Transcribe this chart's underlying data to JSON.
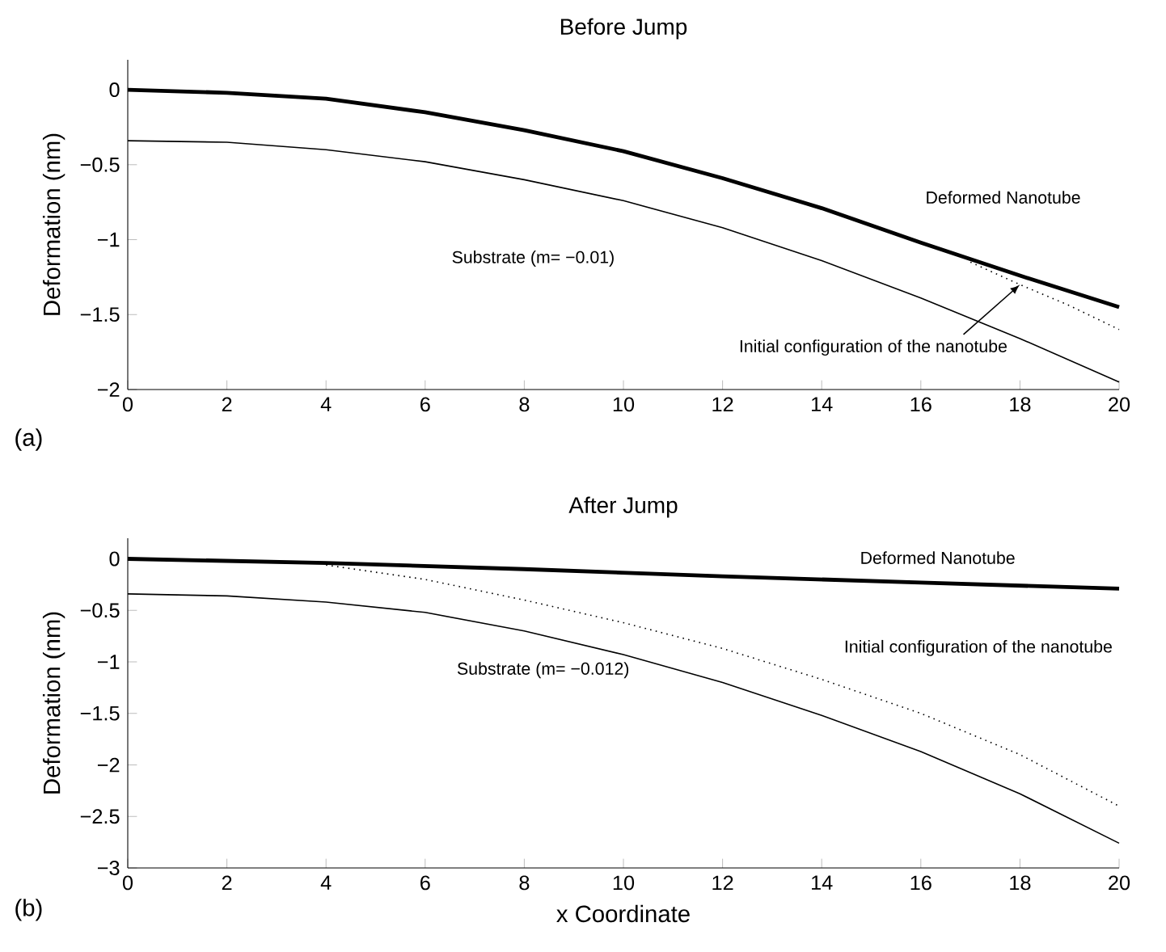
{
  "chart_data": [
    {
      "type": "line",
      "title": "Before Jump",
      "ylabel": "Deformation (nm)",
      "annotations": [
        "(a)"
      ],
      "xlim": [
        0,
        20
      ],
      "ylim": [
        -2,
        0.2
      ],
      "xticks": [
        0,
        2,
        4,
        6,
        8,
        10,
        12,
        14,
        16,
        18,
        20
      ],
      "yticks": [
        {
          "value": -2,
          "label": "−2"
        },
        {
          "value": -1.5,
          "label": "−1.5"
        },
        {
          "value": -1,
          "label": "−1"
        },
        {
          "value": -0.5,
          "label": "−0.5"
        },
        0
      ],
      "series": [
        {
          "name": "Substrate (m= −0.01)",
          "color": "#000000",
          "line_style": "solid",
          "x": [
            0,
            2,
            4,
            6,
            8,
            10,
            12,
            14,
            16,
            18,
            20
          ],
          "values": [
            -0.34,
            -0.35,
            -0.4,
            -0.48,
            -0.6,
            -0.74,
            -0.92,
            -1.14,
            -1.39,
            -1.66,
            -1.95
          ]
        },
        {
          "name": "Initial configuration of the nanotube",
          "color": "#000000",
          "line_style": "dotted",
          "x": [
            17,
            18,
            19,
            20
          ],
          "values": [
            -1.15,
            -1.3,
            -1.44,
            -1.6
          ]
        },
        {
          "name": "Deformed Nanotube",
          "color": "#000000",
          "line_style": "solid",
          "x": [
            0,
            2,
            4,
            6,
            8,
            10,
            12,
            14,
            16,
            18,
            20
          ],
          "values": [
            0,
            -0.02,
            -0.06,
            -0.15,
            -0.27,
            -0.41,
            -0.59,
            -0.79,
            -1.02,
            -1.24,
            -1.45
          ]
        }
      ]
    },
    {
      "type": "line",
      "title": "After Jump",
      "xlabel": "x Coordinate",
      "ylabel": "Deformation (nm)",
      "annotations": [
        "(b)"
      ],
      "xlim": [
        0,
        20
      ],
      "ylim": [
        -3,
        0.2
      ],
      "xticks": [
        0,
        2,
        4,
        6,
        8,
        10,
        12,
        14,
        16,
        18,
        20
      ],
      "yticks": [
        {
          "value": -3,
          "label": "−3"
        },
        {
          "value": -2.5,
          "label": "−2.5"
        },
        {
          "value": -2,
          "label": "−2"
        },
        {
          "value": -1.5,
          "label": "−1.5"
        },
        {
          "value": -1,
          "label": "−1"
        },
        {
          "value": -0.5,
          "label": "−0.5"
        },
        0
      ],
      "series": [
        {
          "name": "Substrate (m= −0.012)",
          "color": "#000000",
          "line_style": "solid",
          "x": [
            0,
            2,
            4,
            6,
            8,
            10,
            12,
            14,
            16,
            18,
            20
          ],
          "values": [
            -0.34,
            -0.36,
            -0.42,
            -0.52,
            -0.7,
            -0.93,
            -1.2,
            -1.52,
            -1.87,
            -2.28,
            -2.76
          ]
        },
        {
          "name": "Initial configuration of the nanotube",
          "color": "#000000",
          "line_style": "dotted",
          "x": [
            4,
            6,
            8,
            10,
            12,
            14,
            16,
            18,
            20
          ],
          "values": [
            -0.06,
            -0.2,
            -0.4,
            -0.62,
            -0.87,
            -1.17,
            -1.5,
            -1.9,
            -2.4
          ]
        },
        {
          "name": "Deformed Nanotube",
          "color": "#000000",
          "line_style": "solid",
          "x": [
            0,
            4,
            8,
            12,
            16,
            20
          ],
          "values": [
            0,
            -0.04,
            -0.1,
            -0.17,
            -0.23,
            -0.29
          ]
        }
      ]
    }
  ]
}
